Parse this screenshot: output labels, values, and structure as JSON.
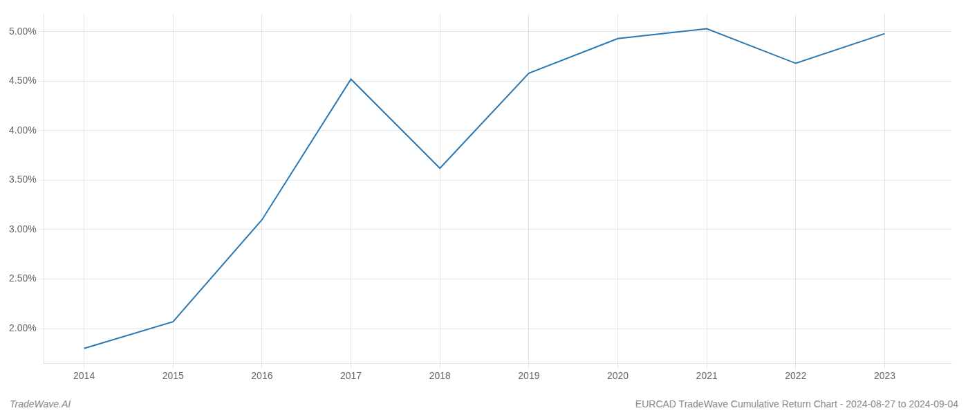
{
  "chart_data": {
    "type": "line",
    "x": [
      2014,
      2015,
      2016,
      2017,
      2018,
      2019,
      2020,
      2021,
      2022,
      2023
    ],
    "values": [
      1.8,
      2.07,
      3.1,
      4.52,
      3.62,
      4.58,
      4.93,
      5.03,
      4.68,
      4.98
    ],
    "color": "#2878b5",
    "xlim": [
      2013.55,
      2023.75
    ],
    "xticks": [
      2014,
      2015,
      2016,
      2017,
      2018,
      2019,
      2020,
      2021,
      2022,
      2023
    ],
    "ylim": [
      1.65,
      5.18
    ],
    "yticks": [
      {
        "value": 2.0,
        "label": "2.00%"
      },
      {
        "value": 2.5,
        "label": "2.50%"
      },
      {
        "value": 3.0,
        "label": "3.00%"
      },
      {
        "value": 3.5,
        "label": "3.50%"
      },
      {
        "value": 4.0,
        "label": "4.00%"
      },
      {
        "value": 4.5,
        "label": "4.50%"
      },
      {
        "value": 5.0,
        "label": "5.00%"
      }
    ],
    "grid": true,
    "annotations": [
      "TradeWave.AI",
      "EURCAD TradeWave Cumulative Return Chart - 2024-08-27 to 2024-09-04"
    ]
  }
}
